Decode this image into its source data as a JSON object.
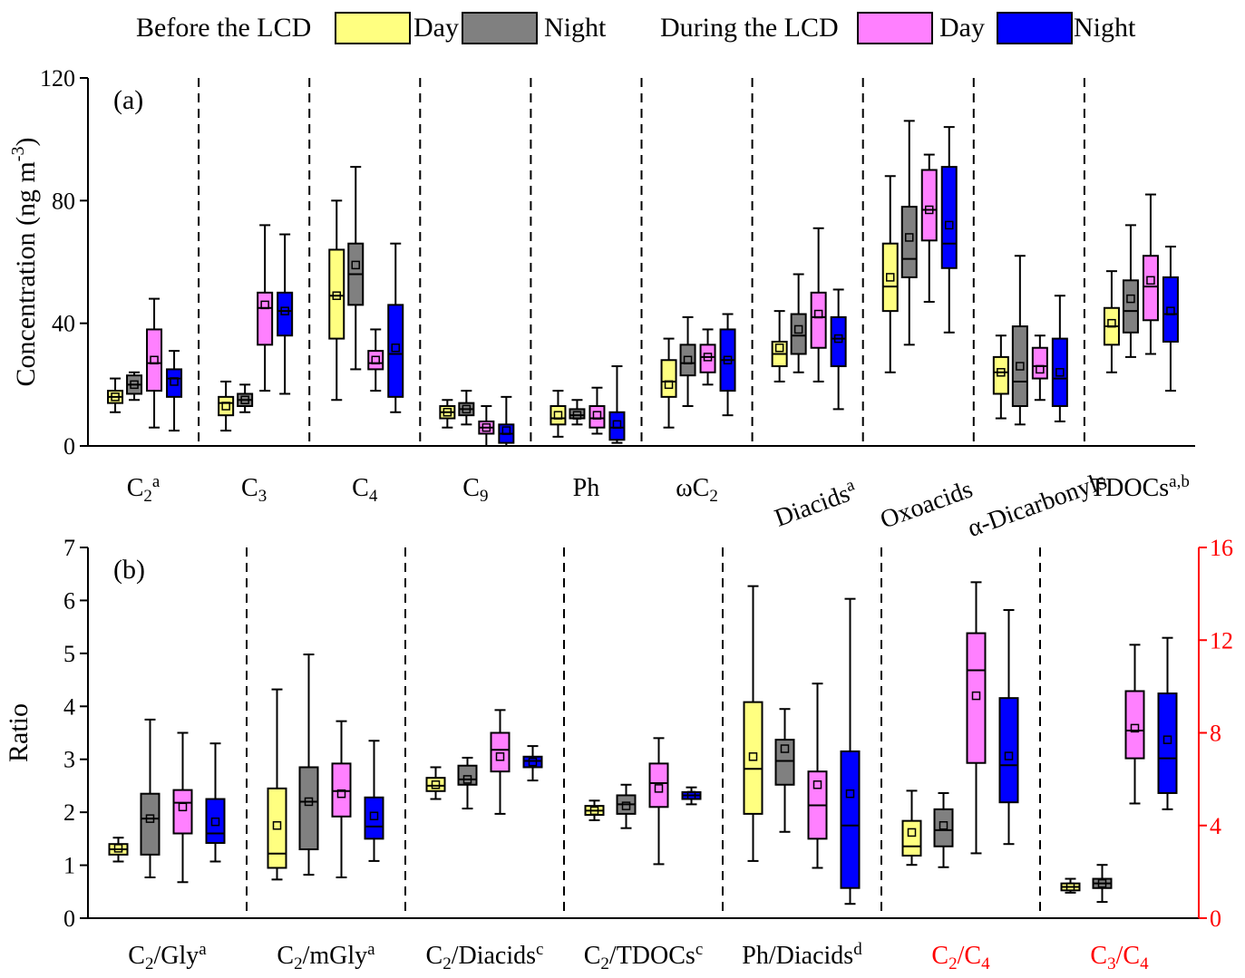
{
  "legend": {
    "groups": [
      {
        "title": "Before the LCD",
        "items": [
          {
            "label": "Day",
            "color": "#FFFF80"
          },
          {
            "label": "Night",
            "color": "#808080"
          }
        ]
      },
      {
        "title": "During the LCD",
        "items": [
          {
            "label": "Day",
            "color": "#FF80FF"
          },
          {
            "label": "Night",
            "color": "#0000FF"
          }
        ]
      }
    ]
  },
  "colors": {
    "box_order": [
      "#FFFF80",
      "#808080",
      "#FF80FF",
      "#0000FF"
    ],
    "right_axis": "#FF0000"
  },
  "chart_data": [
    {
      "type": "box",
      "panel_label": "(a)",
      "ylabel": "Concentration (ng m",
      "ylabel_sup": "-3",
      "ylabel_tail": ")",
      "ylim": [
        0,
        120
      ],
      "yticks": [
        0,
        40,
        80,
        120
      ],
      "series_order": [
        "Before the LCD Day",
        "Before the LCD Night",
        "During the LCD Day",
        "During the LCD Night"
      ],
      "categories": [
        {
          "label": {
            "base": "C",
            "sub": "2",
            "sup": "a"
          },
          "rotate": false,
          "boxes": [
            [
              11,
              14,
              16,
              18,
              22,
              16
            ],
            [
              15,
              17,
              20,
              23,
              24,
              20
            ],
            [
              6,
              18,
              27,
              38,
              48,
              28
            ],
            [
              5,
              16,
              22,
              25,
              31,
              21
            ]
          ]
        },
        {
          "label": {
            "base": "C",
            "sub": "3"
          },
          "rotate": false,
          "boxes": [
            [
              5,
              10,
              14,
              16,
              21,
              13
            ],
            [
              11,
              13,
              15,
              17,
              20,
              15
            ],
            [
              18,
              33,
              45,
              50,
              72,
              46
            ],
            [
              17,
              36,
              44,
              50,
              69,
              44
            ]
          ]
        },
        {
          "label": {
            "base": "C",
            "sub": "4"
          },
          "rotate": false,
          "boxes": [
            [
              15,
              35,
              49,
              64,
              80,
              49
            ],
            [
              25,
              46,
              56,
              66,
              91,
              59
            ],
            [
              18,
              25,
              27,
              31,
              38,
              28
            ],
            [
              11,
              16,
              30,
              46,
              66,
              32
            ]
          ]
        },
        {
          "label": {
            "base": "C",
            "sub": "9"
          },
          "rotate": false,
          "boxes": [
            [
              6,
              9,
              11,
              13,
              15,
              11
            ],
            [
              7,
              10,
              12,
              14,
              18,
              12
            ],
            [
              0,
              4,
              6,
              8,
              13,
              6
            ],
            [
              0,
              1,
              4,
              7,
              16,
              5
            ]
          ]
        },
        {
          "label": {
            "base": "Ph"
          },
          "rotate": false,
          "boxes": [
            [
              3,
              7,
              9,
              13,
              18,
              10
            ],
            [
              7,
              9,
              10,
              12,
              15,
              10
            ],
            [
              4,
              6,
              9,
              13,
              19,
              10
            ],
            [
              1,
              2,
              6,
              11,
              26,
              7
            ]
          ]
        },
        {
          "label": {
            "base": "ωC",
            "sub": "2"
          },
          "rotate": false,
          "boxes": [
            [
              6,
              16,
              21,
              28,
              35,
              20
            ],
            [
              13,
              23,
              27,
              33,
              42,
              28
            ],
            [
              20,
              24,
              29,
              33,
              38,
              29
            ],
            [
              10,
              18,
              28,
              38,
              43,
              28
            ]
          ]
        },
        {
          "label": {
            "base": "Diacids",
            "sup": "a"
          },
          "rotate": true,
          "boxes": [
            [
              21,
              26,
              30,
              34,
              44,
              32
            ],
            [
              24,
              30,
              36,
              43,
              56,
              38
            ],
            [
              21,
              32,
              42,
              50,
              71,
              43
            ],
            [
              12,
              26,
              35,
              42,
              51,
              35
            ]
          ]
        },
        {
          "label": {
            "base": "Oxoacids"
          },
          "rotate": true,
          "boxes": [
            [
              24,
              44,
              52,
              66,
              88,
              55
            ],
            [
              33,
              55,
              61,
              78,
              106,
              68
            ],
            [
              47,
              67,
              77,
              90,
              95,
              77
            ],
            [
              37,
              58,
              66,
              91,
              104,
              72
            ]
          ]
        },
        {
          "label": {
            "base": "α-Dicarbonyls"
          },
          "rotate": true,
          "boxes": [
            [
              9,
              17,
              24,
              29,
              36,
              24
            ],
            [
              7,
              13,
              21,
              39,
              62,
              26
            ],
            [
              15,
              22,
              26,
              32,
              36,
              25
            ],
            [
              8,
              13,
              22,
              35,
              49,
              24
            ]
          ]
        },
        {
          "label": {
            "base": "TDOCs",
            "sup": "a,b"
          },
          "rotate": false,
          "boxes": [
            [
              24,
              33,
              39,
              45,
              57,
              40
            ],
            [
              29,
              37,
              44,
              54,
              72,
              48
            ],
            [
              30,
              41,
              52,
              62,
              82,
              54
            ],
            [
              18,
              34,
              43,
              55,
              65,
              44
            ]
          ]
        }
      ]
    },
    {
      "type": "box",
      "panel_label": "(b)",
      "ylabel": "Ratio",
      "ylim": [
        0,
        7
      ],
      "yticks": [
        0,
        1,
        2,
        3,
        4,
        5,
        6,
        7
      ],
      "y2lim": [
        0,
        16
      ],
      "y2ticks": [
        0,
        4,
        8,
        12,
        16
      ],
      "series_order": [
        "Before the LCD Day",
        "Before the LCD Night",
        "During the LCD Day",
        "During the LCD Night"
      ],
      "categories": [
        {
          "label": {
            "base": "C",
            "sub": "2",
            "tail": "/Gly",
            "sup": "a"
          },
          "axis": "left",
          "boxes": [
            [
              1.07,
              1.2,
              1.3,
              1.4,
              1.52,
              1.32
            ],
            [
              0.77,
              1.2,
              1.88,
              2.35,
              3.75,
              1.88
            ],
            [
              0.68,
              1.6,
              2.18,
              2.42,
              3.5,
              2.1
            ],
            [
              1.07,
              1.42,
              1.6,
              2.25,
              3.3,
              1.82
            ]
          ]
        },
        {
          "label": {
            "base": "C",
            "sub": "2",
            "tail": "/mGly",
            "sup": "a"
          },
          "axis": "left",
          "boxes": [
            [
              0.73,
              0.95,
              1.22,
              2.45,
              4.32,
              1.75
            ],
            [
              0.82,
              1.3,
              2.2,
              2.85,
              4.98,
              2.2
            ],
            [
              0.77,
              1.92,
              2.4,
              2.92,
              3.72,
              2.35
            ],
            [
              1.08,
              1.5,
              1.73,
              2.28,
              3.35,
              1.93
            ]
          ]
        },
        {
          "label": {
            "base": "C",
            "sub": "2",
            "tail": "/Diacids",
            "sup": "c"
          },
          "axis": "left",
          "boxes": [
            [
              2.25,
              2.4,
              2.5,
              2.65,
              2.85,
              2.52
            ],
            [
              2.07,
              2.52,
              2.62,
              2.88,
              3.03,
              2.62
            ],
            [
              1.97,
              2.77,
              3.18,
              3.5,
              3.93,
              3.05
            ],
            [
              2.6,
              2.85,
              2.97,
              3.05,
              3.25,
              2.95
            ]
          ]
        },
        {
          "label": {
            "base": "C",
            "sub": "2",
            "tail": "/TDOCs",
            "sup": "c"
          },
          "axis": "left",
          "boxes": [
            [
              1.85,
              1.95,
              2.03,
              2.12,
              2.22,
              2.03
            ],
            [
              1.7,
              1.97,
              2.15,
              2.32,
              2.52,
              2.12
            ],
            [
              1.02,
              2.1,
              2.55,
              2.92,
              3.4,
              2.45
            ],
            [
              2.15,
              2.25,
              2.32,
              2.38,
              2.47,
              2.32
            ]
          ]
        },
        {
          "label": {
            "base": "Ph/Diacids",
            "sup": "d"
          },
          "axis": "left",
          "boxes": [
            [
              1.08,
              1.97,
              2.82,
              4.08,
              6.27,
              3.05
            ],
            [
              1.63,
              2.52,
              2.97,
              3.37,
              3.95,
              3.2
            ],
            [
              0.95,
              1.5,
              2.13,
              2.77,
              4.43,
              2.52
            ],
            [
              0.27,
              0.57,
              1.75,
              3.15,
              6.03,
              2.35
            ]
          ]
        },
        {
          "label": {
            "base": "C",
            "sub": "2",
            "tail": "/C",
            "sub2": "4"
          },
          "axis": "right",
          "label_color": "#FF0000",
          "boxes": [
            [
              2.3,
              2.7,
              3.1,
              4.2,
              5.5,
              3.7
            ],
            [
              2.2,
              3.1,
              3.8,
              4.7,
              5.4,
              4.0
            ],
            [
              2.8,
              6.7,
              10.7,
              12.3,
              14.5,
              9.6
            ],
            [
              3.2,
              5.0,
              6.6,
              9.5,
              13.3,
              7.0
            ]
          ]
        },
        {
          "label": {
            "base": "C",
            "sub": "3",
            "tail": "/C",
            "sub2": "4"
          },
          "axis": "right",
          "label_color": "#FF0000",
          "boxes": [
            [
              1.1,
              1.2,
              1.35,
              1.5,
              1.7,
              1.35
            ],
            [
              0.7,
              1.3,
              1.5,
              1.7,
              2.3,
              1.5
            ],
            [
              4.95,
              6.9,
              8.1,
              9.8,
              11.8,
              8.2
            ],
            [
              4.7,
              5.4,
              6.9,
              9.7,
              12.1,
              7.7
            ]
          ]
        }
      ]
    }
  ]
}
